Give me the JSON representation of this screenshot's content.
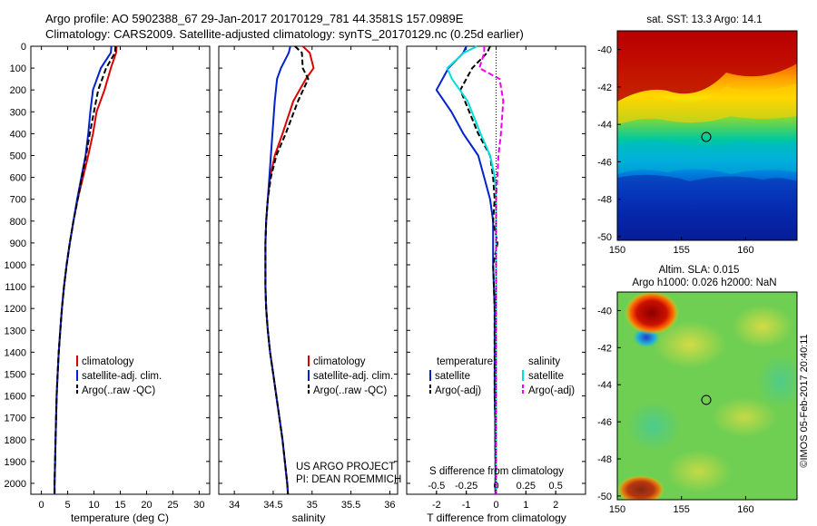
{
  "header": {
    "line1": "Argo profile: AO 5902388_67 29-Jan-2017 20170129_781 44.3581S 157.0989E",
    "line2": "Climatology: CARS2009. Satellite-adjusted climatology: synTS_20170129.nc (0.25d earlier)"
  },
  "colors": {
    "climatology": "#dd0000",
    "satellite": "#0022cc",
    "argo": "#000000",
    "salinity_satellite": "#00dddd",
    "salinity_argo": "#ee00ee"
  },
  "depth_ticks": [
    "0",
    "100",
    "200",
    "300",
    "400",
    "500",
    "600",
    "700",
    "800",
    "900",
    "1000",
    "1100",
    "1200",
    "1300",
    "1400",
    "1500",
    "1600",
    "1700",
    "1800",
    "1900",
    "2000"
  ],
  "panels": {
    "temperature": {
      "xlabel": "temperature (deg C)",
      "ticks": [
        "0",
        "5",
        "10",
        "15",
        "20",
        "25",
        "30"
      ],
      "legend": [
        "climatology",
        "satellite-adj. clim.",
        "Argo(..raw -QC)"
      ]
    },
    "salinity": {
      "xlabel": "salinity",
      "ticks": [
        "34",
        "34.5",
        "35",
        "35.5",
        "36"
      ],
      "legend": [
        "climatology",
        "satellite-adj. clim.",
        "Argo(..raw -QC)"
      ],
      "project_line1": "US ARGO PROJECT",
      "project_line2": "PI: DEAN ROEMMICH"
    },
    "difference": {
      "xlabel": "T difference from climatology",
      "top_label": "S difference from climatology",
      "t_ticks": [
        "-2",
        "-1",
        "0",
        "1",
        "2"
      ],
      "s_ticks": [
        "-0.5",
        "-0.25",
        "0",
        "0.25",
        "0.5"
      ],
      "legend_temperature_title": "temperature",
      "legend_salinity_title": "salinity",
      "legend_temperature": [
        "satellite",
        "Argo(-adj)"
      ],
      "legend_salinity": [
        "satellite",
        "Argo(-adj)"
      ]
    }
  },
  "maps": {
    "sst": {
      "title": "sat. SST: 13.3 Argo: 14.1",
      "xticks": [
        "150",
        "155",
        "160"
      ],
      "yticks": [
        "-40",
        "-42",
        "-44",
        "-46",
        "-48",
        "-50"
      ]
    },
    "sla": {
      "title1": "Altim. SLA: 0.015",
      "title2": "Argo h1000: 0.026 h2000: NaN",
      "xticks": [
        "150",
        "155",
        "160"
      ],
      "yticks": [
        "-40",
        "-42",
        "-44",
        "-46",
        "-48",
        "-50"
      ]
    },
    "credit": "©IMOS 05-Feb-2017 20:40:11"
  },
  "chart_data": [
    {
      "type": "line",
      "panel": "temperature",
      "xlabel": "temperature (deg C)",
      "ylabel": "",
      "xlim": [
        -2,
        32
      ],
      "ylim": [
        2050,
        0
      ],
      "series": [
        {
          "name": "climatology",
          "x": [
            14.3,
            14.2,
            13.2,
            12.0,
            10.5,
            9.8,
            8.9,
            7.9,
            6.9,
            6.1,
            5.4,
            4.8,
            4.3,
            3.9,
            3.6,
            3.3,
            3.1,
            2.9,
            2.8,
            2.7,
            2.6,
            2.5,
            2.5
          ],
          "y": [
            0,
            30,
            100,
            200,
            300,
            400,
            500,
            600,
            700,
            800,
            900,
            1000,
            1100,
            1200,
            1300,
            1400,
            1500,
            1600,
            1700,
            1800,
            1900,
            2000,
            2050
          ]
        },
        {
          "name": "satellite-adj. clim.",
          "x": [
            13.3,
            13.2,
            11.3,
            9.8,
            9.3,
            8.9,
            8.4,
            7.6,
            6.8,
            6.1,
            5.4,
            4.8,
            4.3,
            3.9,
            3.6,
            3.3,
            3.1,
            2.9,
            2.8,
            2.7,
            2.6,
            2.5,
            2.5
          ],
          "y": [
            0,
            30,
            100,
            200,
            300,
            400,
            500,
            600,
            700,
            800,
            900,
            1000,
            1100,
            1200,
            1300,
            1400,
            1500,
            1600,
            1700,
            1800,
            1900,
            2000,
            2050
          ]
        },
        {
          "name": "Argo(..raw -QC)",
          "x": [
            14.1,
            14.0,
            12.3,
            10.8,
            10.0,
            9.2,
            8.5,
            7.7,
            6.9,
            6.1,
            5.4,
            4.8,
            4.3,
            3.9,
            3.6,
            3.3,
            3.1,
            2.9,
            2.8,
            2.7,
            2.6,
            2.5,
            2.5
          ],
          "y": [
            0,
            30,
            100,
            200,
            300,
            400,
            500,
            600,
            700,
            800,
            900,
            1000,
            1100,
            1200,
            1300,
            1400,
            1500,
            1600,
            1700,
            1800,
            1900,
            2000,
            2050
          ]
        }
      ]
    },
    {
      "type": "line",
      "panel": "salinity",
      "xlabel": "salinity",
      "ylabel": "",
      "xlim": [
        33.8,
        36.1
      ],
      "ylim": [
        2050,
        0
      ],
      "series": [
        {
          "name": "climatology",
          "x": [
            34.88,
            34.97,
            35.02,
            34.92,
            34.76,
            34.62,
            34.52,
            34.46,
            34.43,
            34.41,
            34.4,
            34.4,
            34.4,
            34.41,
            34.43,
            34.46,
            34.5,
            34.54,
            34.58,
            34.62,
            34.65,
            34.68,
            34.69
          ],
          "y": [
            0,
            30,
            100,
            150,
            250,
            400,
            500,
            600,
            700,
            800,
            900,
            1000,
            1100,
            1200,
            1300,
            1400,
            1500,
            1600,
            1700,
            1800,
            1900,
            2000,
            2050
          ]
        },
        {
          "name": "satellite-adj. clim.",
          "x": [
            34.72,
            34.7,
            34.6,
            34.55,
            34.52,
            34.49,
            34.47,
            34.45,
            34.43,
            34.41,
            34.4,
            34.4,
            34.4,
            34.41,
            34.43,
            34.46,
            34.5,
            34.54,
            34.58,
            34.62,
            34.65,
            34.68,
            34.69
          ],
          "y": [
            0,
            30,
            100,
            150,
            250,
            400,
            500,
            600,
            700,
            800,
            900,
            1000,
            1100,
            1200,
            1300,
            1400,
            1500,
            1600,
            1700,
            1800,
            1900,
            2000,
            2050
          ]
        },
        {
          "name": "Argo(..raw -QC)",
          "x": [
            34.78,
            34.87,
            34.88,
            34.95,
            34.82,
            34.66,
            34.54,
            34.47,
            34.43,
            34.41,
            34.4,
            34.4,
            34.4,
            34.41,
            34.43,
            34.46,
            34.5,
            34.54,
            34.58,
            34.62,
            34.65,
            34.68,
            34.69
          ],
          "y": [
            0,
            30,
            100,
            150,
            250,
            400,
            500,
            600,
            700,
            800,
            900,
            1000,
            1100,
            1200,
            1300,
            1400,
            1500,
            1600,
            1700,
            1800,
            1900,
            2000,
            2050
          ]
        }
      ]
    },
    {
      "type": "line",
      "panel": "difference",
      "xlabel": "T difference from climatology",
      "x2label": "S difference from climatology",
      "ylabel": "",
      "xlim": [
        -3,
        3
      ],
      "x2lim": [
        -0.75,
        0.75
      ],
      "ylim": [
        2050,
        0
      ],
      "series": [
        {
          "name": "temperature satellite",
          "axis": "T",
          "x": [
            -1.0,
            -1.1,
            -1.6,
            -2.0,
            -1.5,
            -1.1,
            -0.6,
            -0.4,
            -0.2,
            -0.1,
            -0.1,
            -0.1,
            -0.05,
            -0.05,
            -0.05,
            -0.05,
            -0.03,
            -0.03,
            -0.02,
            -0.02,
            -0.02
          ],
          "y": [
            0,
            30,
            100,
            200,
            300,
            400,
            500,
            600,
            700,
            800,
            900,
            1000,
            1200,
            1400,
            1500,
            1600,
            1700,
            1800,
            1900,
            2000,
            2050
          ]
        },
        {
          "name": "temperature Argo(-adj)",
          "axis": "T",
          "x": [
            -0.2,
            -0.3,
            -0.8,
            -1.2,
            -0.9,
            -0.6,
            -0.2,
            -0.1,
            -0.05,
            -0.1,
            0.05,
            -0.1,
            -0.05,
            -0.05,
            -0.05,
            -0.05,
            -0.03,
            -0.03,
            -0.02,
            -0.02,
            -0.02
          ],
          "y": [
            0,
            30,
            100,
            200,
            300,
            400,
            500,
            600,
            700,
            800,
            900,
            1000,
            1200,
            1400,
            1500,
            1600,
            1700,
            1800,
            1900,
            2000,
            2050
          ]
        },
        {
          "name": "salinity satellite",
          "axis": "S",
          "x": [
            -0.16,
            -0.27,
            -0.41,
            -0.37,
            -0.24,
            -0.13,
            -0.05,
            -0.01,
            0.0,
            0.0,
            0.0,
            0.0,
            0.0,
            0.0,
            0.0,
            0.0,
            0.0,
            0.0
          ],
          "y": [
            0,
            30,
            100,
            150,
            250,
            400,
            500,
            600,
            700,
            800,
            1000,
            1200,
            1400,
            1600,
            1800,
            1900,
            2000,
            2050
          ]
        },
        {
          "name": "salinity Argo(-adj)",
          "axis": "S",
          "x": [
            -0.1,
            -0.1,
            -0.14,
            0.03,
            0.06,
            0.04,
            0.02,
            0.01,
            0.0,
            0.0,
            0.0,
            0.0,
            0.0,
            0.0,
            0.0,
            0.0,
            0.0,
            0.0
          ],
          "y": [
            0,
            30,
            100,
            150,
            250,
            400,
            500,
            600,
            700,
            800,
            1000,
            1200,
            1400,
            1600,
            1800,
            1900,
            2000,
            2050
          ]
        }
      ]
    }
  ]
}
